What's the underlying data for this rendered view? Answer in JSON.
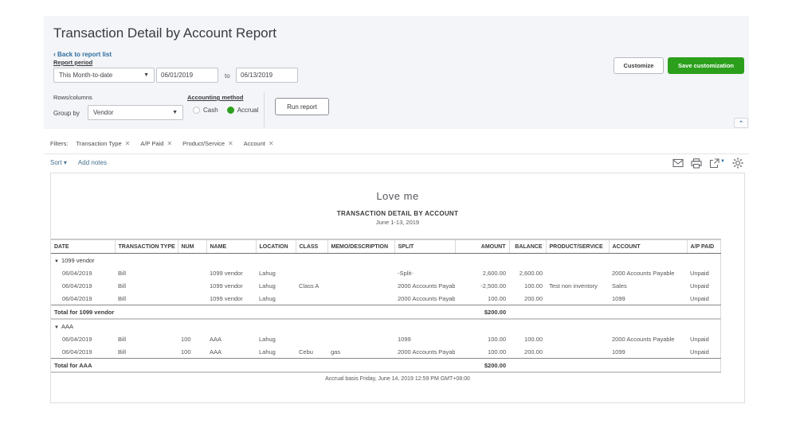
{
  "header": {
    "title": "Transaction Detail by Account Report",
    "back_link": "Back to report list",
    "back_chevron": "‹",
    "report_period_label": "Report period",
    "period_value": "This Month-to-date",
    "date_from": "06/01/2019",
    "to_label": "to",
    "date_to": "06/13/2019",
    "rows_columns_label": "Rows/columns",
    "group_by_label": "Group by",
    "group_by_value": "Vendor",
    "accounting_method_label": "Accounting method",
    "cash_label": "Cash",
    "accrual_label": "Accrual",
    "run_report_label": "Run report",
    "customize_label": "Customize",
    "save_customization_label": "Save customization",
    "collapse_glyph": "⌃"
  },
  "filters": {
    "label": "Filters:",
    "chips": [
      "Transaction Type",
      "A/P Paid",
      "Product/Service",
      "Account"
    ],
    "remove_glyph": "✕"
  },
  "toolbar": {
    "sort_label": "Sort ▾",
    "add_notes_label": "Add notes",
    "icons": [
      "email-icon",
      "print-icon",
      "export-icon",
      "settings-icon"
    ]
  },
  "report": {
    "company": "Love me",
    "title": "TRANSACTION DETAIL BY ACCOUNT",
    "subtitle": "June 1-13, 2019",
    "footer": "Accrual basis  Friday, June 14, 2019   12:59 PM GMT+08:00",
    "group_collapse_glyph": "▼",
    "columns": [
      "DATE",
      "TRANSACTION TYPE",
      "NUM",
      "NAME",
      "LOCATION",
      "CLASS",
      "MEMO/DESCRIPTION",
      "SPLIT",
      "AMOUNT",
      "BALANCE",
      "PRODUCT/SERVICE",
      "ACCOUNT",
      "A/P PAID"
    ],
    "numeric_columns": [
      8,
      9
    ],
    "groups": [
      {
        "name": "1099 vendor",
        "rows": [
          [
            "06/04/2019",
            "Bill",
            "",
            "1099 vendor",
            "Lahug",
            "",
            "",
            "-Split-",
            "2,600.00",
            "2,600.00",
            "",
            "2000 Accounts Payable",
            "Unpaid"
          ],
          [
            "06/04/2019",
            "Bill",
            "",
            "1099 vendor",
            "Lahug",
            "Class A",
            "",
            "2000 Accounts Payable",
            "-2,500.00",
            "100.00",
            "Test non inventory",
            "Sales",
            "Unpaid"
          ],
          [
            "06/04/2019",
            "Bill",
            "",
            "1099 vendor",
            "Lahug",
            "",
            "",
            "2000 Accounts Payable",
            "100.00",
            "200.00",
            "",
            "1099",
            "Unpaid"
          ]
        ],
        "total_label": "Total for 1099 vendor",
        "total_amount": "$200.00"
      },
      {
        "name": "AAA",
        "rows": [
          [
            "06/04/2019",
            "Bill",
            "100",
            "AAA",
            "Lahug",
            "",
            "",
            "1099",
            "100.00",
            "100.00",
            "",
            "2000 Accounts Payable",
            "Unpaid"
          ],
          [
            "06/04/2019",
            "Bill",
            "100",
            "AAA",
            "Lahug",
            "Cebu",
            "gas",
            "2000 Accounts Payable",
            "100.00",
            "200.00",
            "",
            "1099",
            "Unpaid"
          ]
        ],
        "total_label": "Total for AAA",
        "total_amount": "$200.00"
      }
    ]
  },
  "colors": {
    "accent_green": "#2ca01c",
    "link_blue": "#2e6e9e",
    "panel_bg": "#f4f5f8"
  }
}
